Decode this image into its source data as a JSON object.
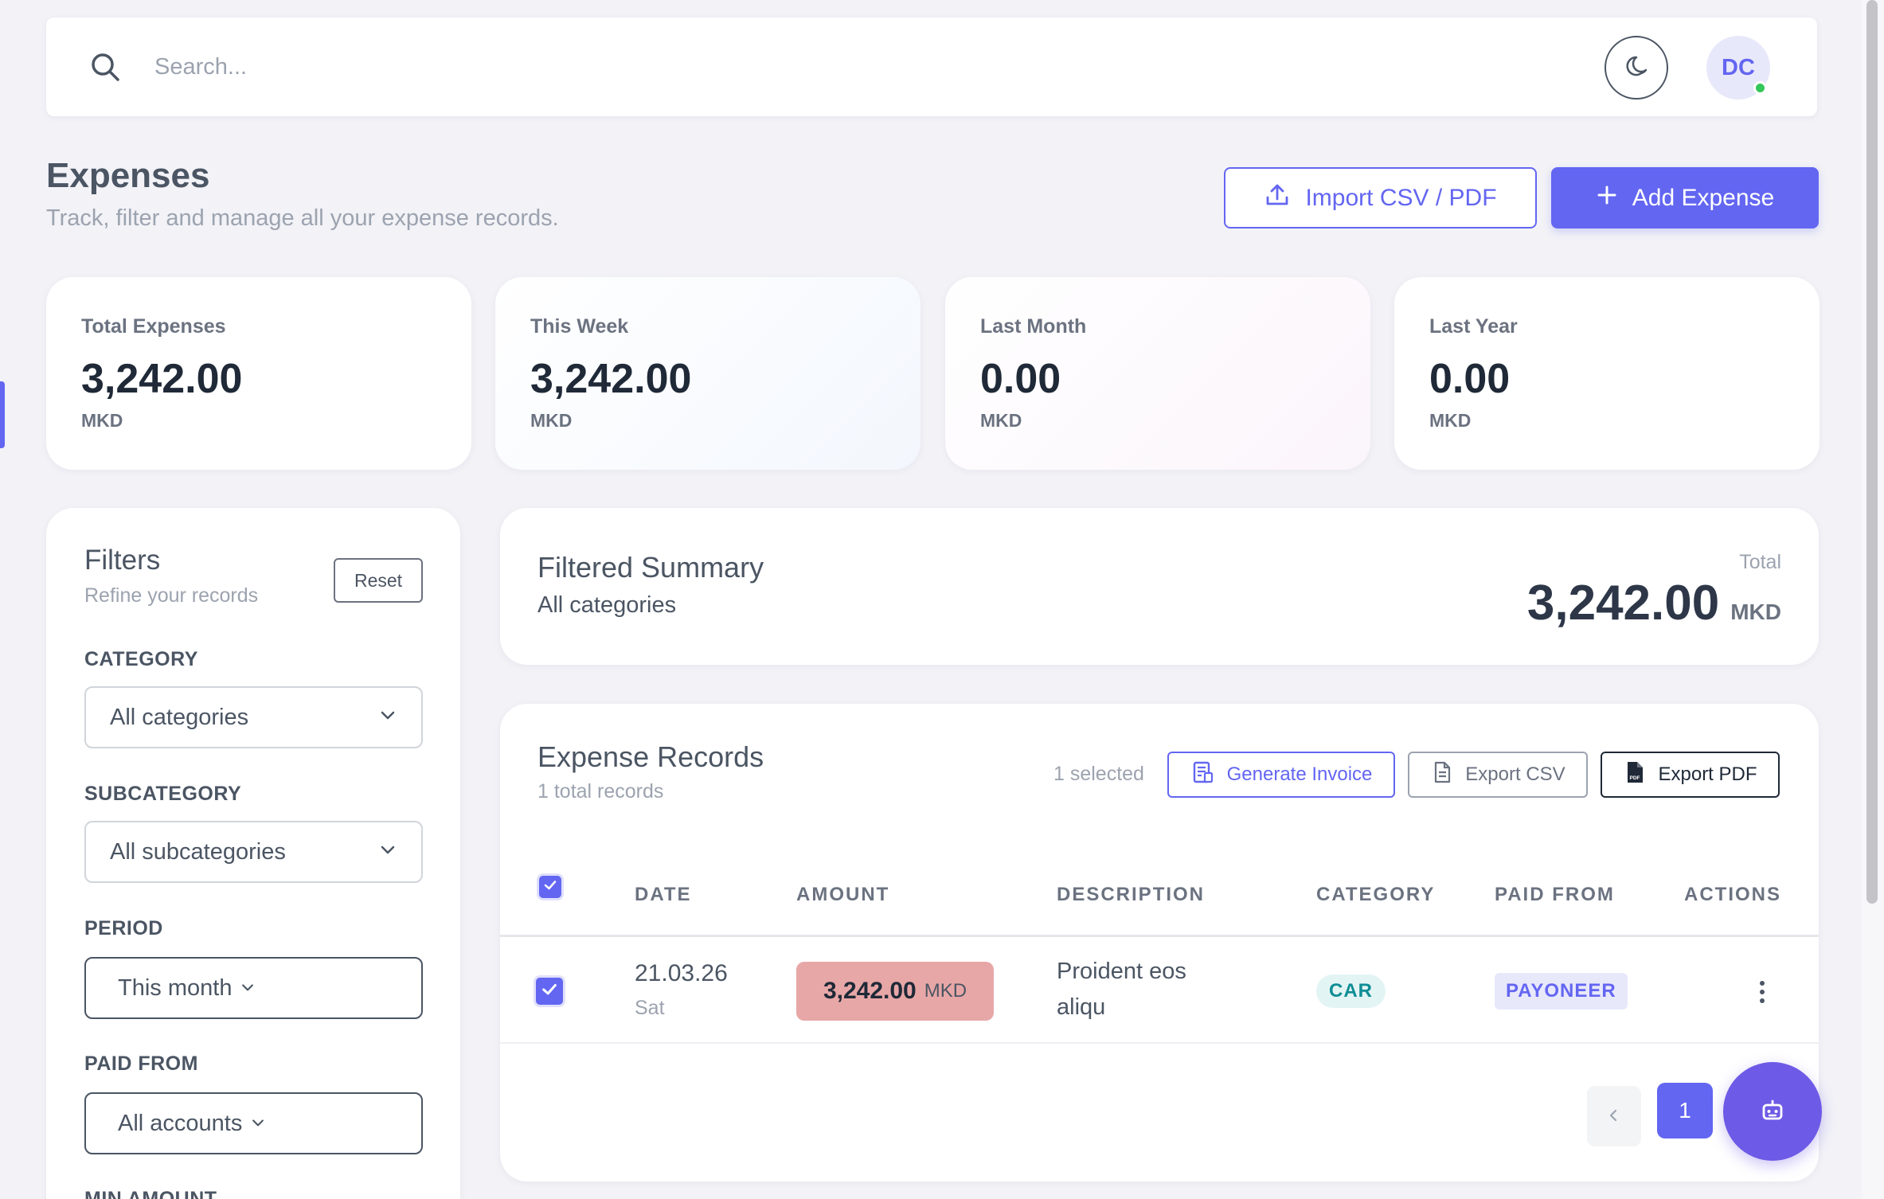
{
  "topbar": {
    "search_placeholder": "Search...",
    "avatar_initials": "DC"
  },
  "header": {
    "title": "Expenses",
    "subtitle": "Track, filter and manage all your expense records.",
    "import_label": "Import CSV / PDF",
    "add_label": "Add Expense"
  },
  "stats": [
    {
      "label": "Total Expenses",
      "value": "3,242.00",
      "currency": "MKD"
    },
    {
      "label": "This Week",
      "value": "3,242.00",
      "currency": "MKD"
    },
    {
      "label": "Last Month",
      "value": "0.00",
      "currency": "MKD"
    },
    {
      "label": "Last Year",
      "value": "0.00",
      "currency": "MKD"
    }
  ],
  "filters": {
    "title": "Filters",
    "subtitle": "Refine your records",
    "reset_label": "Reset",
    "category_label": "CATEGORY",
    "category_value": "All categories",
    "subcategory_label": "SUBCATEGORY",
    "subcategory_value": "All subcategories",
    "period_label": "PERIOD",
    "period_value": "This month",
    "paid_from_label": "PAID FROM",
    "paid_from_value": "All accounts",
    "min_amount_label": "MIN AMOUNT"
  },
  "summary": {
    "title": "Filtered Summary",
    "subtitle": "All categories",
    "total_label": "Total",
    "total_value": "3,242.00",
    "total_currency": "MKD"
  },
  "records": {
    "title": "Expense Records",
    "subtitle": "1 total records",
    "selected_count": "1 selected",
    "invoice_label": "Generate Invoice",
    "export_csv_label": "Export CSV",
    "export_pdf_label": "Export PDF",
    "columns": [
      "DATE",
      "AMOUNT",
      "DESCRIPTION",
      "CATEGORY",
      "PAID FROM",
      "ACTIONS"
    ],
    "rows": [
      {
        "date": "21.03.26",
        "day": "Sat",
        "amount": "3,242.00",
        "currency": "MKD",
        "description": "Proident eos aliqu",
        "category": "CAR",
        "paid_from": "PAYONEER"
      }
    ],
    "current_page": "1"
  },
  "colors": {
    "accent": "#6366f1",
    "amount_pill": "#e8a7a7",
    "category_badge": "#0f8d95",
    "online_dot": "#34c759"
  }
}
